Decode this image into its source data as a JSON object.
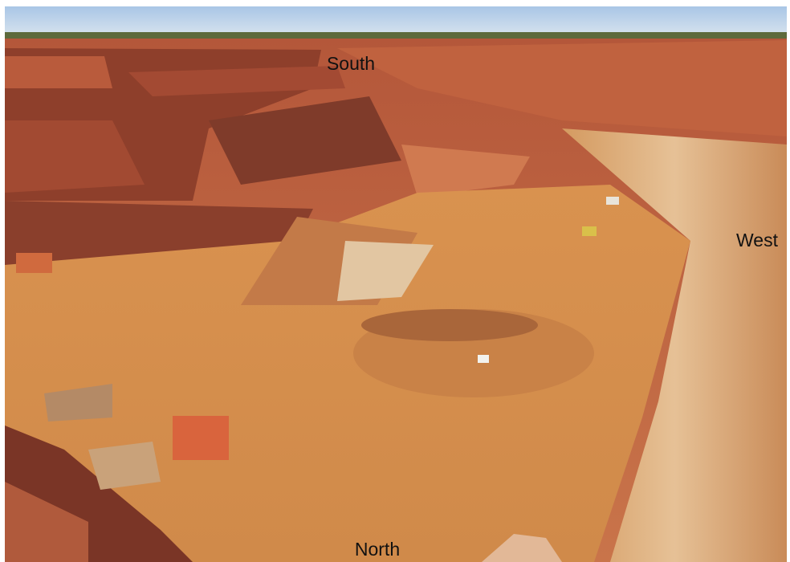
{
  "compass_labels": {
    "south": "South",
    "west": "West",
    "north": "North"
  }
}
